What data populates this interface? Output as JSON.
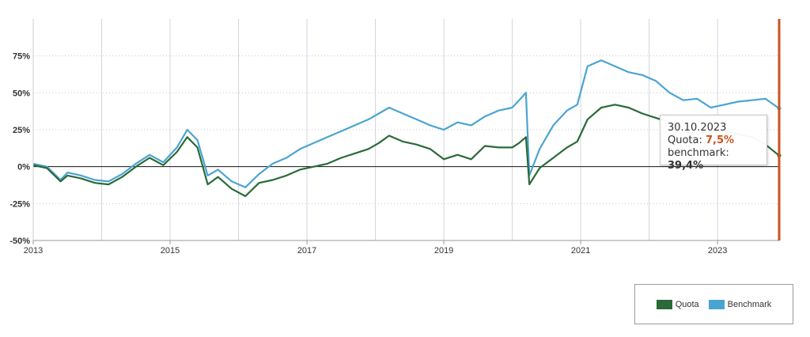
{
  "chart_data": {
    "type": "line",
    "title": "",
    "xlabel": "",
    "ylabel": "",
    "x_ticks": [
      "2013",
      "2015",
      "2017",
      "2019",
      "2021",
      "2023"
    ],
    "y_ticks": [
      "75%",
      "50%",
      "25%",
      "0%",
      "-25%",
      "-50%"
    ],
    "ylim": [
      -50,
      100
    ],
    "xlim": [
      2013.0,
      2023.9
    ],
    "grid": true,
    "legend_placement": "bottom-right",
    "colors": {
      "quota": "#2a6a38",
      "benchmark": "#4aa4d2",
      "cursor": "#c8541e"
    },
    "series": [
      {
        "name": "Quota",
        "x": [
          2013.0,
          2013.2,
          2013.4,
          2013.5,
          2013.7,
          2013.9,
          2014.1,
          2014.3,
          2014.5,
          2014.7,
          2014.9,
          2015.1,
          2015.25,
          2015.4,
          2015.55,
          2015.7,
          2015.9,
          2016.1,
          2016.3,
          2016.5,
          2016.7,
          2016.9,
          2017.1,
          2017.3,
          2017.5,
          2017.7,
          2017.9,
          2018.05,
          2018.2,
          2018.4,
          2018.6,
          2018.8,
          2019.0,
          2019.2,
          2019.4,
          2019.6,
          2019.8,
          2020.0,
          2020.1,
          2020.2,
          2020.25,
          2020.4,
          2020.6,
          2020.8,
          2020.95,
          2021.1,
          2021.3,
          2021.5,
          2021.7,
          2021.9,
          2022.1,
          2022.3,
          2022.5,
          2022.7,
          2022.9,
          2023.1,
          2023.3,
          2023.5,
          2023.7,
          2023.9
        ],
        "y": [
          1,
          -1,
          -10,
          -6,
          -8,
          -11,
          -12,
          -7,
          0,
          6,
          1,
          10,
          20,
          13,
          -12,
          -7,
          -15,
          -20,
          -11,
          -9,
          -6,
          -2,
          0,
          2,
          6,
          9,
          12,
          16,
          21,
          17,
          15,
          12,
          5,
          8,
          5,
          14,
          13,
          13,
          16,
          20,
          -12,
          -1,
          6,
          13,
          17,
          32,
          40,
          42,
          40,
          36,
          33,
          30,
          24,
          22,
          24,
          24,
          22,
          20,
          15,
          7.5
        ]
      },
      {
        "name": "Benchmark",
        "x": [
          2013.0,
          2013.2,
          2013.4,
          2013.5,
          2013.7,
          2013.9,
          2014.1,
          2014.3,
          2014.5,
          2014.7,
          2014.9,
          2015.1,
          2015.25,
          2015.4,
          2015.55,
          2015.7,
          2015.9,
          2016.1,
          2016.3,
          2016.5,
          2016.7,
          2016.9,
          2017.1,
          2017.3,
          2017.5,
          2017.7,
          2017.9,
          2018.05,
          2018.2,
          2018.4,
          2018.6,
          2018.8,
          2019.0,
          2019.2,
          2019.4,
          2019.6,
          2019.8,
          2020.0,
          2020.1,
          2020.2,
          2020.25,
          2020.4,
          2020.6,
          2020.8,
          2020.95,
          2021.1,
          2021.3,
          2021.5,
          2021.7,
          2021.9,
          2022.1,
          2022.3,
          2022.5,
          2022.7,
          2022.9,
          2023.1,
          2023.3,
          2023.5,
          2023.7,
          2023.9
        ],
        "y": [
          2,
          0,
          -9,
          -4,
          -6,
          -9,
          -10,
          -5,
          2,
          8,
          3,
          13,
          25,
          18,
          -6,
          -2,
          -10,
          -14,
          -5,
          2,
          6,
          12,
          16,
          20,
          24,
          28,
          32,
          36,
          40,
          36,
          32,
          28,
          25,
          30,
          28,
          34,
          38,
          40,
          45,
          50,
          -6,
          12,
          28,
          38,
          42,
          68,
          72,
          68,
          64,
          62,
          58,
          50,
          45,
          46,
          40,
          42,
          44,
          45,
          46,
          39.4
        ]
      }
    ]
  },
  "tooltip": {
    "date": "30.10.2023",
    "quota_label": "Quota:",
    "quota_value": "7,5%",
    "benchmark_label": "benchmark:",
    "benchmark_value": "39,4%"
  },
  "legend": {
    "quota_label": "Quota",
    "benchmark_label": "Benchmark"
  }
}
